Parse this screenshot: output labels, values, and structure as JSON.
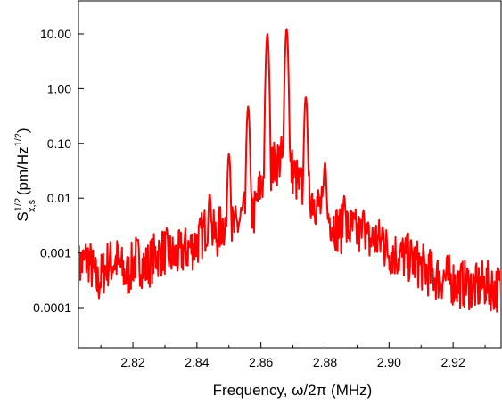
{
  "chart_data": {
    "type": "line",
    "color": "#ff0000",
    "grid": false,
    "x_axis": {
      "range": [
        2.803,
        2.935
      ],
      "ticks": [
        2.82,
        2.84,
        2.86,
        2.88,
        2.9,
        2.92
      ],
      "tick_labels": [
        "2.82",
        "2.84",
        "2.86",
        "2.88",
        "2.90",
        "2.92"
      ],
      "title": "Frequency, ω/2π (MHz)"
    },
    "y_axis": {
      "scale": "log",
      "range": [
        1.85e-05,
        40
      ],
      "ticks": [
        0.0001,
        0.001,
        0.01,
        0.1,
        1,
        10
      ],
      "tick_labels": [
        "0.0001",
        "0.001",
        "0.01",
        "0.10",
        "1.00",
        "10.00"
      ],
      "title": "S^{1/2}_{x,s} (pm/Hz^{1/2})"
    },
    "peaks": [
      {
        "x": 2.844,
        "y": 0.012
      },
      {
        "x": 2.85,
        "y": 0.065
      },
      {
        "x": 2.856,
        "y": 0.47
      },
      {
        "x": 2.862,
        "y": 10.0
      },
      {
        "x": 2.868,
        "y": 12.5
      },
      {
        "x": 2.874,
        "y": 0.72
      },
      {
        "x": 2.88,
        "y": 0.045
      },
      {
        "x": 2.886,
        "y": 0.011
      },
      {
        "x": 2.892,
        "y": 0.006
      },
      {
        "x": 2.898,
        "y": 0.003
      }
    ],
    "series": [
      {
        "x": [
          2.803,
          2.806,
          2.809,
          2.812,
          2.815,
          2.818,
          2.821,
          2.824,
          2.827,
          2.83,
          2.833,
          2.836,
          2.839,
          2.841,
          2.843,
          2.846,
          2.848,
          2.852,
          2.854,
          2.858,
          2.86,
          2.864,
          2.866,
          2.87,
          2.872,
          2.876,
          2.878,
          2.882,
          2.884,
          2.888,
          2.89,
          2.894,
          2.896,
          2.9,
          2.903,
          2.906,
          2.909,
          2.912,
          2.915,
          2.918,
          2.921,
          2.924,
          2.927,
          2.93,
          2.933
        ],
        "y": [
          0.0006,
          0.0009,
          0.0003,
          0.0007,
          0.0008,
          0.0004,
          0.0009,
          0.0006,
          0.001,
          0.0012,
          0.0009,
          0.0012,
          0.0015,
          0.002,
          0.0035,
          0.0022,
          0.0038,
          0.003,
          0.005,
          0.006,
          0.02,
          0.045,
          0.06,
          0.035,
          0.018,
          0.012,
          0.008,
          0.0045,
          0.003,
          0.003,
          0.0025,
          0.0018,
          0.002,
          0.0012,
          0.001,
          0.0009,
          0.0007,
          0.0005,
          0.0004,
          0.0004,
          0.0003,
          0.0003,
          0.00025,
          0.0003,
          0.00025
        ]
      }
    ]
  }
}
